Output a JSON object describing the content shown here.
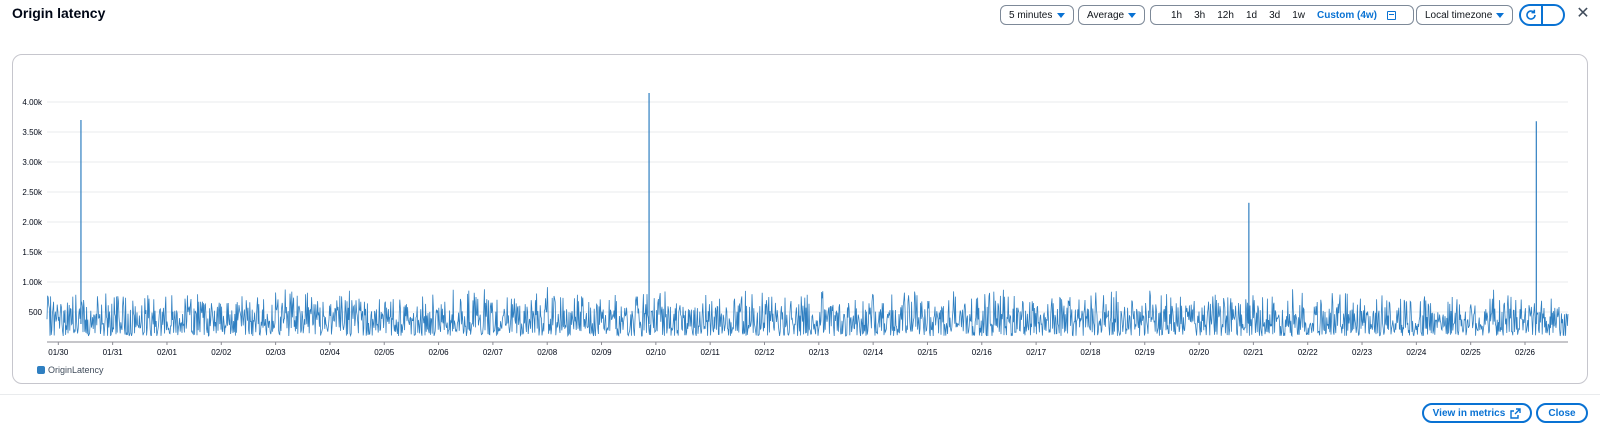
{
  "header": {
    "title": "Origin latency"
  },
  "controls": {
    "period": "5 minutes",
    "statistic": "Average",
    "ranges": [
      "1h",
      "3h",
      "12h",
      "1d",
      "3d",
      "1w"
    ],
    "active_range": "Custom (4w)",
    "timezone": "Local timezone"
  },
  "footer": {
    "view_in_metrics": "View in metrics",
    "close": "Close"
  },
  "colors": {
    "accent": "#0972d3",
    "series": "#2f7fc1"
  },
  "chart_data": {
    "type": "line",
    "series": [
      {
        "name": "OriginLatency"
      }
    ],
    "y_ticks": [
      "500",
      "1.00k",
      "1.50k",
      "2.00k",
      "2.50k",
      "3.00k",
      "3.50k",
      "4.00k"
    ],
    "x_ticks": [
      "01/30",
      "01/31",
      "02/01",
      "02/02",
      "02/03",
      "02/04",
      "02/05",
      "02/06",
      "02/07",
      "02/08",
      "02/09",
      "02/10",
      "02/11",
      "02/12",
      "02/13",
      "02/14",
      "02/15",
      "02/16",
      "02/17",
      "02/18",
      "02/19",
      "02/20",
      "02/21",
      "02/22",
      "02/23",
      "02/24",
      "02/25",
      "02/26"
    ],
    "ylim": [
      0,
      4300
    ],
    "x_start": "01/29 19:00",
    "x_end": "02/26 19:00",
    "baseline_range": [
      100,
      900
    ],
    "spikes": [
      {
        "time": "01/30 10:00",
        "value": 3700
      },
      {
        "time": "02/09 21:00",
        "value": 4150
      },
      {
        "time": "02/20 22:00",
        "value": 2320
      },
      {
        "time": "02/26 05:00",
        "value": 3680
      }
    ],
    "grid": true,
    "legend": "bottom-left"
  }
}
